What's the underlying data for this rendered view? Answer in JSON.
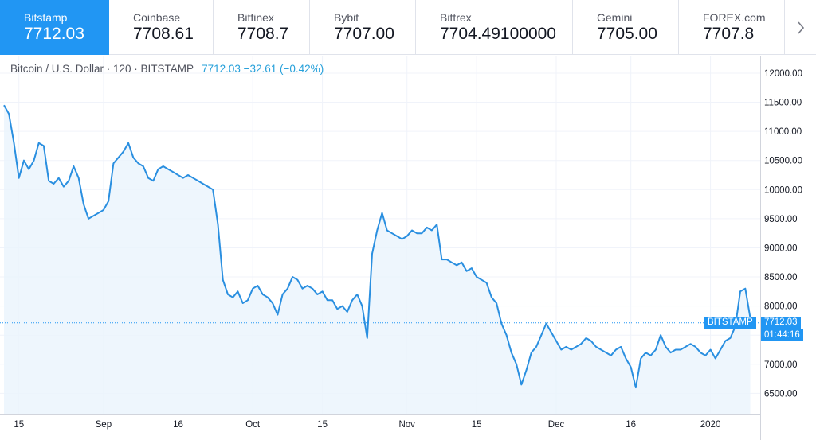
{
  "exchanges": [
    {
      "name": "Bitstamp",
      "price": "7712.03",
      "active": true
    },
    {
      "name": "Coinbase",
      "price": "7708.61"
    },
    {
      "name": "Bitfinex",
      "price": "7708.7"
    },
    {
      "name": "Bybit",
      "price": "7707.00"
    },
    {
      "name": "Bittrex",
      "price": "7704.49100000"
    },
    {
      "name": "Gemini",
      "price": "7705.00"
    },
    {
      "name": "FOREX.com",
      "price": "7707.8"
    }
  ],
  "icons": {
    "next": "chevron-right-icon"
  },
  "legend": {
    "symbol": "Bitcoin / U.S. Dollar · 120 · BITSTAMP",
    "values": "7712.03  −32.61 (−0.42%)"
  },
  "price_tag": {
    "exchange": "BITSTAMP",
    "price": "7712.03",
    "countdown": "01:44:16"
  },
  "colors": {
    "accent": "#2196f3",
    "line": "#2a8fe0",
    "fill": "#eaf4fd"
  },
  "chart_data": {
    "type": "area",
    "title": "",
    "xlabel": "",
    "ylabel": "",
    "ylim": [
      6150,
      12300
    ],
    "grid": true,
    "yticks": [
      12000,
      11500,
      11000,
      10500,
      10000,
      9500,
      9000,
      8500,
      8000,
      7500,
      7000,
      6500
    ],
    "ytick_labels": [
      "12000.00",
      "11500.00",
      "11000.00",
      "10500.00",
      "10000.00",
      "9500.00",
      "9000.00",
      "8500.00",
      "8000.00",
      "7500.00",
      "7000.00",
      "6500.00"
    ],
    "xticks": [
      {
        "label": "15",
        "date": "2019-08-15"
      },
      {
        "label": "Sep",
        "date": "2019-09-01"
      },
      {
        "label": "16",
        "date": "2019-09-16"
      },
      {
        "label": "Oct",
        "date": "2019-10-01"
      },
      {
        "label": "15",
        "date": "2019-10-15"
      },
      {
        "label": "Nov",
        "date": "2019-11-01"
      },
      {
        "label": "15",
        "date": "2019-11-15"
      },
      {
        "label": "Dec",
        "date": "2019-12-01"
      },
      {
        "label": "16",
        "date": "2019-12-16"
      },
      {
        "label": "2020",
        "date": "2020-01-01"
      }
    ],
    "last_value": 7712.03,
    "series": [
      {
        "x": [
          "2019-08-12",
          "2019-08-13",
          "2019-08-14",
          "2019-08-15",
          "2019-08-16",
          "2019-08-17",
          "2019-08-18",
          "2019-08-19",
          "2019-08-20",
          "2019-08-21",
          "2019-08-22",
          "2019-08-23",
          "2019-08-24",
          "2019-08-25",
          "2019-08-26",
          "2019-08-27",
          "2019-08-28",
          "2019-08-29",
          "2019-08-30",
          "2019-08-31",
          "2019-09-01",
          "2019-09-02",
          "2019-09-03",
          "2019-09-04",
          "2019-09-05",
          "2019-09-06",
          "2019-09-07",
          "2019-09-08",
          "2019-09-09",
          "2019-09-10",
          "2019-09-11",
          "2019-09-12",
          "2019-09-13",
          "2019-09-14",
          "2019-09-15",
          "2019-09-16",
          "2019-09-17",
          "2019-09-18",
          "2019-09-19",
          "2019-09-20",
          "2019-09-21",
          "2019-09-22",
          "2019-09-23",
          "2019-09-24",
          "2019-09-25",
          "2019-09-26",
          "2019-09-27",
          "2019-09-28",
          "2019-09-29",
          "2019-09-30",
          "2019-10-01",
          "2019-10-02",
          "2019-10-03",
          "2019-10-04",
          "2019-10-05",
          "2019-10-06",
          "2019-10-07",
          "2019-10-08",
          "2019-10-09",
          "2019-10-10",
          "2019-10-11",
          "2019-10-12",
          "2019-10-13",
          "2019-10-14",
          "2019-10-15",
          "2019-10-16",
          "2019-10-17",
          "2019-10-18",
          "2019-10-19",
          "2019-10-20",
          "2019-10-21",
          "2019-10-22",
          "2019-10-23",
          "2019-10-24",
          "2019-10-25",
          "2019-10-26",
          "2019-10-27",
          "2019-10-28",
          "2019-10-29",
          "2019-10-30",
          "2019-10-31",
          "2019-11-01",
          "2019-11-02",
          "2019-11-03",
          "2019-11-04",
          "2019-11-05",
          "2019-11-06",
          "2019-11-07",
          "2019-11-08",
          "2019-11-09",
          "2019-11-10",
          "2019-11-11",
          "2019-11-12",
          "2019-11-13",
          "2019-11-14",
          "2019-11-15",
          "2019-11-16",
          "2019-11-17",
          "2019-11-18",
          "2019-11-19",
          "2019-11-20",
          "2019-11-21",
          "2019-11-22",
          "2019-11-23",
          "2019-11-24",
          "2019-11-25",
          "2019-11-26",
          "2019-11-27",
          "2019-11-28",
          "2019-11-29",
          "2019-11-30",
          "2019-12-01",
          "2019-12-02",
          "2019-12-03",
          "2019-12-04",
          "2019-12-05",
          "2019-12-06",
          "2019-12-07",
          "2019-12-08",
          "2019-12-09",
          "2019-12-10",
          "2019-12-11",
          "2019-12-12",
          "2019-12-13",
          "2019-12-14",
          "2019-12-15",
          "2019-12-16",
          "2019-12-17",
          "2019-12-18",
          "2019-12-19",
          "2019-12-20",
          "2019-12-21",
          "2019-12-22",
          "2019-12-23",
          "2019-12-24",
          "2019-12-25",
          "2019-12-26",
          "2019-12-27",
          "2019-12-28",
          "2019-12-29",
          "2019-12-30",
          "2019-12-31",
          "2020-01-01",
          "2020-01-02",
          "2020-01-03",
          "2020-01-04",
          "2020-01-05",
          "2020-01-06",
          "2020-01-07",
          "2020-01-08",
          "2020-01-09"
        ],
        "values": [
          11450,
          11300,
          10800,
          10200,
          10500,
          10350,
          10500,
          10800,
          10750,
          10150,
          10100,
          10200,
          10050,
          10150,
          10400,
          10200,
          9750,
          9500,
          9550,
          9600,
          9650,
          9800,
          10450,
          10550,
          10650,
          10800,
          10550,
          10450,
          10400,
          10200,
          10150,
          10350,
          10400,
          10350,
          10300,
          10250,
          10200,
          10250,
          10200,
          10150,
          10100,
          10050,
          10000,
          9400,
          8450,
          8200,
          8150,
          8250,
          8050,
          8100,
          8300,
          8350,
          8200,
          8150,
          8050,
          7850,
          8200,
          8300,
          8500,
          8450,
          8300,
          8350,
          8300,
          8200,
          8250,
          8100,
          8100,
          7950,
          8000,
          7900,
          8100,
          8200,
          8000,
          7450,
          8900,
          9300,
          9600,
          9300,
          9250,
          9200,
          9150,
          9200,
          9300,
          9250,
          9250,
          9350,
          9300,
          9400,
          8800,
          8800,
          8750,
          8700,
          8750,
          8600,
          8650,
          8500,
          8450,
          8400,
          8150,
          8050,
          7700,
          7500,
          7200,
          7000,
          6650,
          6900,
          7200,
          7300,
          7500,
          7700,
          7550,
          7400,
          7250,
          7300,
          7250,
          7300,
          7350,
          7450,
          7400,
          7300,
          7250,
          7200,
          7150,
          7250,
          7300,
          7100,
          6950,
          6600,
          7100,
          7200,
          7150,
          7250,
          7500,
          7300,
          7200,
          7250,
          7250,
          7300,
          7350,
          7300,
          7200,
          7150,
          7250,
          7100,
          7250,
          7400,
          7450,
          7650,
          8250,
          8300,
          7800
        ]
      }
    ]
  }
}
